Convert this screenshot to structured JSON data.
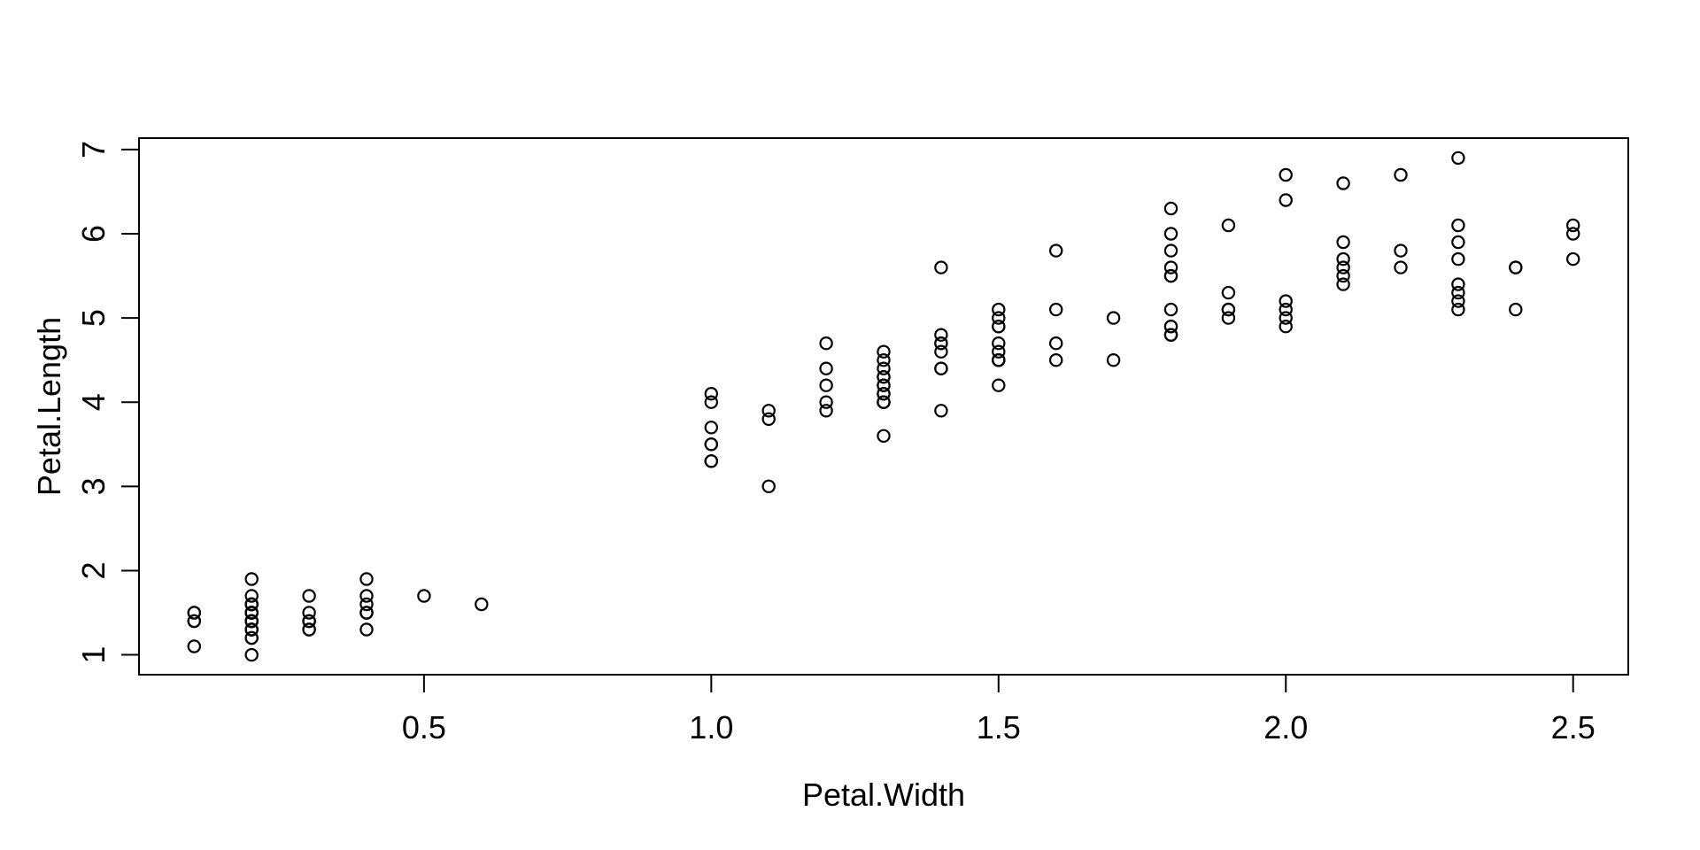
{
  "figure": {
    "background_color": "#ffffff",
    "foreground_color": "#000000"
  },
  "chart_data": {
    "type": "scatter",
    "title": "",
    "xlabel": "Petal.Width",
    "ylabel": "Petal.Length",
    "xlim": [
      0.004,
      2.596
    ],
    "ylim": [
      0.764,
      7.136
    ],
    "grid": false,
    "legend": "none",
    "x_ticks": [
      {
        "value": 0.5,
        "label": "0.5"
      },
      {
        "value": 1.0,
        "label": "1.0"
      },
      {
        "value": 1.5,
        "label": "1.5"
      },
      {
        "value": 2.0,
        "label": "2.0"
      },
      {
        "value": 2.5,
        "label": "2.5"
      }
    ],
    "y_ticks": [
      {
        "value": 1,
        "label": "1"
      },
      {
        "value": 2,
        "label": "2"
      },
      {
        "value": 3,
        "label": "3"
      },
      {
        "value": 4,
        "label": "4"
      },
      {
        "value": 5,
        "label": "5"
      },
      {
        "value": 6,
        "label": "6"
      },
      {
        "value": 7,
        "label": "7"
      }
    ],
    "marker": {
      "shape": "open-circle",
      "color": "#000000",
      "radius_px": 6.6,
      "stroke_px": 2.2
    },
    "points": [
      [
        0.2,
        1.4
      ],
      [
        0.2,
        1.4
      ],
      [
        0.2,
        1.3
      ],
      [
        0.2,
        1.5
      ],
      [
        0.2,
        1.4
      ],
      [
        0.4,
        1.7
      ],
      [
        0.3,
        1.4
      ],
      [
        0.2,
        1.5
      ],
      [
        0.2,
        1.4
      ],
      [
        0.1,
        1.5
      ],
      [
        0.2,
        1.5
      ],
      [
        0.2,
        1.6
      ],
      [
        0.1,
        1.4
      ],
      [
        0.1,
        1.1
      ],
      [
        0.2,
        1.2
      ],
      [
        0.4,
        1.5
      ],
      [
        0.4,
        1.3
      ],
      [
        0.3,
        1.4
      ],
      [
        0.3,
        1.7
      ],
      [
        0.3,
        1.5
      ],
      [
        0.2,
        1.7
      ],
      [
        0.4,
        1.5
      ],
      [
        0.2,
        1.0
      ],
      [
        0.5,
        1.7
      ],
      [
        0.2,
        1.9
      ],
      [
        0.2,
        1.6
      ],
      [
        0.4,
        1.6
      ],
      [
        0.2,
        1.5
      ],
      [
        0.2,
        1.4
      ],
      [
        0.2,
        1.6
      ],
      [
        0.2,
        1.6
      ],
      [
        0.4,
        1.5
      ],
      [
        0.1,
        1.5
      ],
      [
        0.2,
        1.4
      ],
      [
        0.2,
        1.5
      ],
      [
        0.2,
        1.2
      ],
      [
        0.2,
        1.3
      ],
      [
        0.1,
        1.4
      ],
      [
        0.2,
        1.3
      ],
      [
        0.2,
        1.5
      ],
      [
        0.3,
        1.3
      ],
      [
        0.3,
        1.3
      ],
      [
        0.2,
        1.3
      ],
      [
        0.6,
        1.6
      ],
      [
        0.4,
        1.9
      ],
      [
        0.3,
        1.4
      ],
      [
        0.2,
        1.6
      ],
      [
        0.2,
        1.4
      ],
      [
        0.2,
        1.5
      ],
      [
        0.2,
        1.4
      ],
      [
        1.4,
        4.7
      ],
      [
        1.5,
        4.5
      ],
      [
        1.5,
        4.9
      ],
      [
        1.3,
        4.0
      ],
      [
        1.5,
        4.6
      ],
      [
        1.3,
        4.5
      ],
      [
        1.6,
        4.7
      ],
      [
        1.0,
        3.3
      ],
      [
        1.3,
        4.6
      ],
      [
        1.4,
        3.9
      ],
      [
        1.0,
        3.5
      ],
      [
        1.5,
        4.2
      ],
      [
        1.0,
        4.0
      ],
      [
        1.4,
        4.7
      ],
      [
        1.3,
        3.6
      ],
      [
        1.4,
        4.4
      ],
      [
        1.5,
        4.5
      ],
      [
        1.0,
        4.1
      ],
      [
        1.5,
        4.5
      ],
      [
        1.1,
        3.9
      ],
      [
        1.8,
        4.8
      ],
      [
        1.3,
        4.0
      ],
      [
        1.5,
        4.9
      ],
      [
        1.2,
        4.7
      ],
      [
        1.3,
        4.3
      ],
      [
        1.4,
        4.4
      ],
      [
        1.4,
        4.8
      ],
      [
        1.7,
        5.0
      ],
      [
        1.5,
        4.5
      ],
      [
        1.0,
        3.5
      ],
      [
        1.1,
        3.8
      ],
      [
        1.0,
        3.7
      ],
      [
        1.2,
        3.9
      ],
      [
        1.6,
        5.1
      ],
      [
        1.5,
        4.5
      ],
      [
        1.6,
        4.5
      ],
      [
        1.5,
        4.7
      ],
      [
        1.3,
        4.4
      ],
      [
        1.3,
        4.1
      ],
      [
        1.3,
        4.0
      ],
      [
        1.2,
        4.4
      ],
      [
        1.4,
        4.6
      ],
      [
        1.2,
        4.0
      ],
      [
        1.0,
        3.3
      ],
      [
        1.3,
        4.2
      ],
      [
        1.2,
        4.2
      ],
      [
        1.3,
        4.2
      ],
      [
        1.3,
        4.3
      ],
      [
        1.1,
        3.0
      ],
      [
        1.3,
        4.1
      ],
      [
        2.5,
        6.0
      ],
      [
        1.9,
        5.1
      ],
      [
        2.1,
        5.9
      ],
      [
        1.8,
        5.6
      ],
      [
        2.2,
        5.8
      ],
      [
        2.1,
        6.6
      ],
      [
        1.7,
        4.5
      ],
      [
        1.8,
        6.3
      ],
      [
        1.8,
        5.8
      ],
      [
        2.5,
        6.1
      ],
      [
        2.0,
        5.1
      ],
      [
        1.9,
        5.3
      ],
      [
        2.1,
        5.5
      ],
      [
        2.0,
        5.0
      ],
      [
        2.4,
        5.1
      ],
      [
        2.3,
        5.3
      ],
      [
        1.8,
        5.5
      ],
      [
        2.2,
        6.7
      ],
      [
        2.3,
        6.9
      ],
      [
        1.5,
        5.0
      ],
      [
        2.3,
        5.7
      ],
      [
        2.0,
        4.9
      ],
      [
        2.0,
        6.7
      ],
      [
        1.8,
        4.9
      ],
      [
        2.1,
        5.7
      ],
      [
        1.8,
        6.0
      ],
      [
        1.8,
        4.8
      ],
      [
        1.8,
        4.9
      ],
      [
        2.1,
        5.6
      ],
      [
        1.6,
        5.8
      ],
      [
        1.9,
        6.1
      ],
      [
        2.0,
        6.4
      ],
      [
        2.2,
        5.6
      ],
      [
        1.5,
        5.1
      ],
      [
        1.4,
        5.6
      ],
      [
        2.3,
        6.1
      ],
      [
        2.4,
        5.6
      ],
      [
        1.8,
        5.5
      ],
      [
        1.8,
        4.8
      ],
      [
        2.1,
        5.4
      ],
      [
        2.4,
        5.6
      ],
      [
        2.3,
        5.1
      ],
      [
        1.9,
        5.1
      ],
      [
        2.3,
        5.9
      ],
      [
        2.5,
        5.7
      ],
      [
        2.3,
        5.2
      ],
      [
        1.9,
        5.0
      ],
      [
        2.0,
        5.2
      ],
      [
        2.3,
        5.4
      ],
      [
        1.8,
        5.1
      ]
    ]
  }
}
